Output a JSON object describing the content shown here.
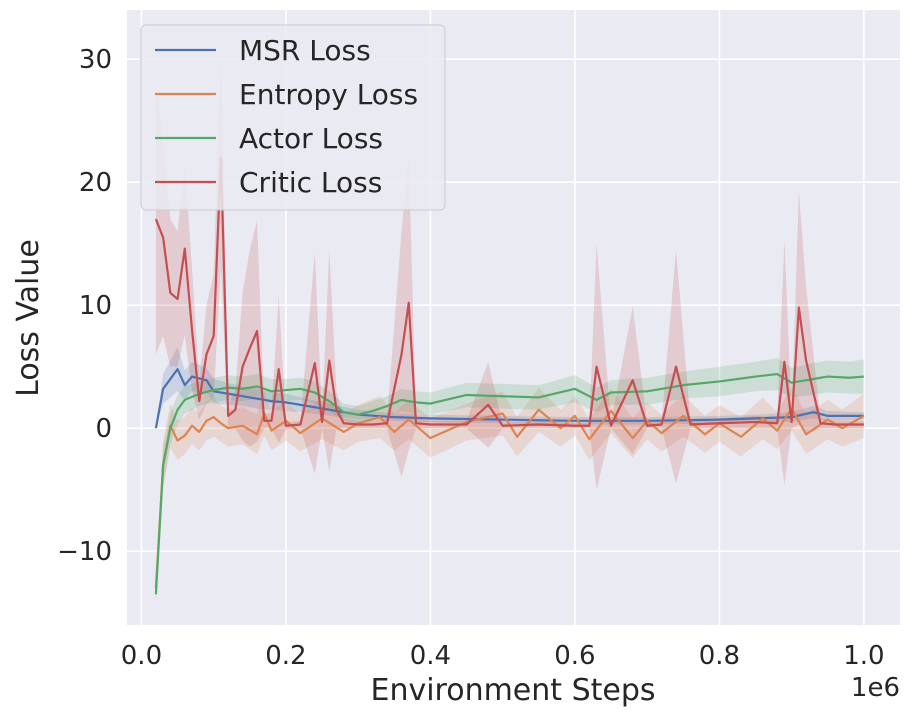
{
  "chart_data": {
    "type": "line",
    "xlabel": "Environment Steps",
    "ylabel": "Loss Value",
    "x_offset_label": "1e6",
    "xlim": [
      -0.02,
      1.05
    ],
    "ylim": [
      -16,
      34
    ],
    "xticks": [
      0.0,
      0.2,
      0.4,
      0.6,
      0.8,
      1.0
    ],
    "xtick_labels": [
      "0.0",
      "0.2",
      "0.4",
      "0.6",
      "0.8",
      "1.0"
    ],
    "yticks": [
      -10,
      0,
      10,
      20,
      30
    ],
    "ytick_labels": [
      "−10",
      "0",
      "10",
      "20",
      "30"
    ],
    "grid": true,
    "legend_position": "upper-left",
    "series": [
      {
        "name": "MSR Loss",
        "color": "#4c72b0",
        "x": [
          0.02,
          0.03,
          0.05,
          0.06,
          0.07,
          0.09,
          0.1,
          0.12,
          0.14,
          0.16,
          0.18,
          0.2,
          0.25,
          0.3,
          0.35,
          0.4,
          0.5,
          0.6,
          0.7,
          0.8,
          0.85,
          0.9,
          0.93,
          0.95,
          1.0
        ],
        "y": [
          0.0,
          3.2,
          4.8,
          3.5,
          4.2,
          3.9,
          3.0,
          2.8,
          2.6,
          2.4,
          2.2,
          2.1,
          1.6,
          1.1,
          0.9,
          0.8,
          0.7,
          0.6,
          0.6,
          0.7,
          0.8,
          0.9,
          1.3,
          1.0,
          1.0
        ],
        "err": [
          0.0,
          1.2,
          1.8,
          1.2,
          1.2,
          1.0,
          1.0,
          0.9,
          0.8,
          0.8,
          0.7,
          0.7,
          0.5,
          0.4,
          0.3,
          0.3,
          0.3,
          0.3,
          0.3,
          0.3,
          0.3,
          0.4,
          0.5,
          0.4,
          0.3
        ]
      },
      {
        "name": "Entropy Loss",
        "color": "#dd8452",
        "x": [
          0.02,
          0.03,
          0.04,
          0.05,
          0.06,
          0.07,
          0.08,
          0.09,
          0.1,
          0.11,
          0.12,
          0.14,
          0.16,
          0.17,
          0.18,
          0.2,
          0.22,
          0.25,
          0.28,
          0.3,
          0.33,
          0.35,
          0.37,
          0.4,
          0.45,
          0.5,
          0.52,
          0.55,
          0.58,
          0.6,
          0.62,
          0.65,
          0.68,
          0.7,
          0.72,
          0.75,
          0.78,
          0.8,
          0.83,
          0.86,
          0.88,
          0.9,
          0.92,
          0.95,
          0.97,
          1.0
        ],
        "y": [
          -13.0,
          -3.0,
          0.2,
          -1.0,
          -0.6,
          0.2,
          -0.3,
          0.6,
          0.9,
          0.4,
          0.0,
          0.2,
          -0.5,
          1.2,
          -0.2,
          0.6,
          -0.4,
          0.8,
          -0.3,
          0.4,
          0.9,
          -0.3,
          0.7,
          -0.8,
          0.5,
          1.2,
          -0.7,
          1.5,
          0.0,
          1.0,
          -0.9,
          1.4,
          -0.8,
          0.6,
          -0.4,
          1.0,
          -0.5,
          0.4,
          -0.7,
          0.8,
          -0.2,
          1.6,
          -0.5,
          0.7,
          0.0,
          1.0
        ],
        "err": [
          1.0,
          2.0,
          1.8,
          1.6,
          1.5,
          1.5,
          1.5,
          1.6,
          1.6,
          1.5,
          1.5,
          1.5,
          1.6,
          1.8,
          1.6,
          1.6,
          1.5,
          1.7,
          1.5,
          1.5,
          1.7,
          1.5,
          1.6,
          1.6,
          1.5,
          1.8,
          1.6,
          1.8,
          1.5,
          1.6,
          1.7,
          1.8,
          1.6,
          1.5,
          1.5,
          1.7,
          1.5,
          1.5,
          1.6,
          1.7,
          1.5,
          1.8,
          1.6,
          1.6,
          1.5,
          1.8
        ]
      },
      {
        "name": "Actor Loss",
        "color": "#55a868",
        "x": [
          0.02,
          0.03,
          0.04,
          0.05,
          0.06,
          0.08,
          0.1,
          0.12,
          0.14,
          0.16,
          0.18,
          0.2,
          0.22,
          0.24,
          0.26,
          0.28,
          0.3,
          0.32,
          0.34,
          0.36,
          0.38,
          0.4,
          0.45,
          0.5,
          0.55,
          0.6,
          0.63,
          0.65,
          0.7,
          0.75,
          0.8,
          0.85,
          0.88,
          0.9,
          0.93,
          0.95,
          0.98,
          1.0
        ],
        "y": [
          -13.5,
          -3.0,
          0.0,
          1.5,
          2.3,
          2.8,
          3.1,
          3.3,
          3.2,
          3.4,
          3.0,
          3.1,
          3.2,
          2.9,
          2.2,
          1.3,
          1.1,
          1.4,
          1.8,
          2.3,
          2.1,
          2.0,
          2.7,
          2.6,
          2.5,
          3.2,
          2.3,
          2.9,
          3.0,
          3.5,
          3.8,
          4.2,
          4.4,
          3.7,
          4.0,
          4.2,
          4.1,
          4.2
        ],
        "err": [
          0.7,
          1.5,
          1.3,
          1.2,
          1.1,
          1.0,
          1.0,
          1.0,
          1.0,
          1.0,
          1.0,
          0.9,
          0.9,
          0.9,
          0.8,
          0.7,
          0.7,
          0.8,
          0.8,
          0.9,
          0.9,
          0.9,
          1.0,
          1.0,
          1.0,
          1.1,
          1.0,
          1.0,
          1.1,
          1.1,
          1.2,
          1.2,
          1.3,
          1.2,
          1.3,
          1.3,
          1.3,
          1.4
        ]
      },
      {
        "name": "Critic Loss",
        "color": "#c44e52",
        "x": [
          0.02,
          0.03,
          0.04,
          0.05,
          0.06,
          0.07,
          0.08,
          0.09,
          0.1,
          0.11,
          0.12,
          0.13,
          0.14,
          0.15,
          0.16,
          0.17,
          0.18,
          0.19,
          0.2,
          0.22,
          0.24,
          0.25,
          0.26,
          0.27,
          0.28,
          0.3,
          0.32,
          0.34,
          0.36,
          0.37,
          0.38,
          0.4,
          0.45,
          0.48,
          0.5,
          0.55,
          0.6,
          0.62,
          0.63,
          0.65,
          0.68,
          0.7,
          0.72,
          0.74,
          0.76,
          0.8,
          0.85,
          0.88,
          0.89,
          0.9,
          0.91,
          0.92,
          0.94,
          0.96,
          1.0
        ],
        "y": [
          17.0,
          15.5,
          11.0,
          10.5,
          14.6,
          8.0,
          2.2,
          6.0,
          7.5,
          22.0,
          1.0,
          1.5,
          5.0,
          6.5,
          7.9,
          0.6,
          0.6,
          4.8,
          0.2,
          0.3,
          5.3,
          0.5,
          5.5,
          1.5,
          0.4,
          0.3,
          0.3,
          0.4,
          6.0,
          10.2,
          0.4,
          0.3,
          0.3,
          1.9,
          0.2,
          0.3,
          0.2,
          0.2,
          5.0,
          0.2,
          3.9,
          0.2,
          0.3,
          5.0,
          0.3,
          0.4,
          0.5,
          0.4,
          5.4,
          0.5,
          9.8,
          5.5,
          0.4,
          0.3,
          0.3
        ],
        "err": [
          11.0,
          8.0,
          6.0,
          5.5,
          7.0,
          5.0,
          1.5,
          4.0,
          5.0,
          9.0,
          1.0,
          1.5,
          6.0,
          8.0,
          9.0,
          0.6,
          0.6,
          6.0,
          0.3,
          0.3,
          9.0,
          0.5,
          9.0,
          1.5,
          0.4,
          0.3,
          0.3,
          0.4,
          10.0,
          12.0,
          0.4,
          0.3,
          0.3,
          3.5,
          0.2,
          0.3,
          0.2,
          0.2,
          10.0,
          0.2,
          6.0,
          0.2,
          0.3,
          9.5,
          0.3,
          0.4,
          0.5,
          0.4,
          10.0,
          0.5,
          9.5,
          6.0,
          0.4,
          0.3,
          0.3
        ]
      }
    ]
  }
}
